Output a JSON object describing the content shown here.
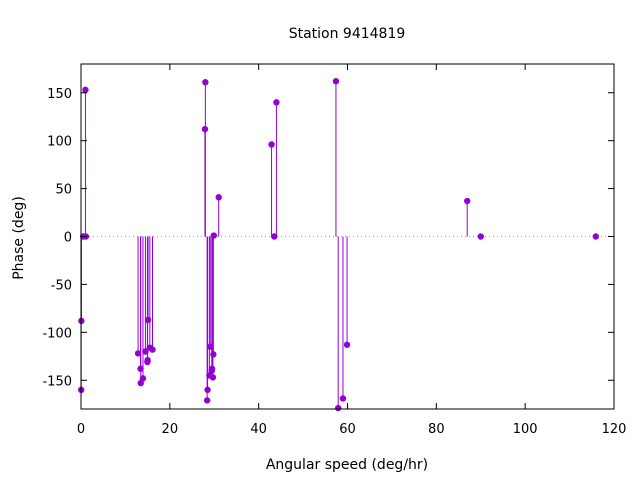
{
  "chart_data": {
    "type": "scatter",
    "style": "impulses-with-points",
    "title": "Station 9414819",
    "xlabel": "Angular speed (deg/hr)",
    "ylabel": "Phase (deg)",
    "xlim": [
      0,
      120
    ],
    "ylim": [
      -180,
      180
    ],
    "x_ticks": [
      0,
      20,
      40,
      60,
      80,
      100,
      120
    ],
    "y_ticks": [
      -150,
      -100,
      -50,
      0,
      50,
      100,
      150
    ],
    "zero_line": true,
    "grid": false,
    "legend": "none",
    "color": "#9400d3",
    "zero_line_color": "#a0a0a0",
    "series": [
      {
        "points": [
          [
            0.04,
            -160
          ],
          [
            0.08,
            -88
          ],
          [
            0.5,
            0
          ],
          [
            1.0,
            153
          ],
          [
            1.1,
            0
          ],
          [
            12.85,
            -122
          ],
          [
            13.4,
            -138
          ],
          [
            13.45,
            -153
          ],
          [
            13.95,
            -148
          ],
          [
            14.5,
            -120
          ],
          [
            14.95,
            -131
          ],
          [
            15.0,
            -129
          ],
          [
            15.1,
            -87
          ],
          [
            15.5,
            -116
          ],
          [
            16.1,
            -118
          ],
          [
            27.9,
            112
          ],
          [
            28.0,
            161
          ],
          [
            28.4,
            -171
          ],
          [
            28.5,
            -160
          ],
          [
            28.9,
            -145
          ],
          [
            29.1,
            -115
          ],
          [
            29.45,
            -140
          ],
          [
            29.5,
            -138
          ],
          [
            29.7,
            -147
          ],
          [
            29.8,
            -123
          ],
          [
            29.9,
            1
          ],
          [
            31.0,
            41
          ],
          [
            42.9,
            96
          ],
          [
            43.5,
            0
          ],
          [
            44.0,
            140
          ],
          [
            57.4,
            162
          ],
          [
            57.9,
            -179
          ],
          [
            58.98,
            -169
          ],
          [
            59.9,
            -113
          ],
          [
            86.95,
            37
          ],
          [
            90.0,
            0
          ],
          [
            115.9,
            0
          ]
        ]
      }
    ]
  }
}
